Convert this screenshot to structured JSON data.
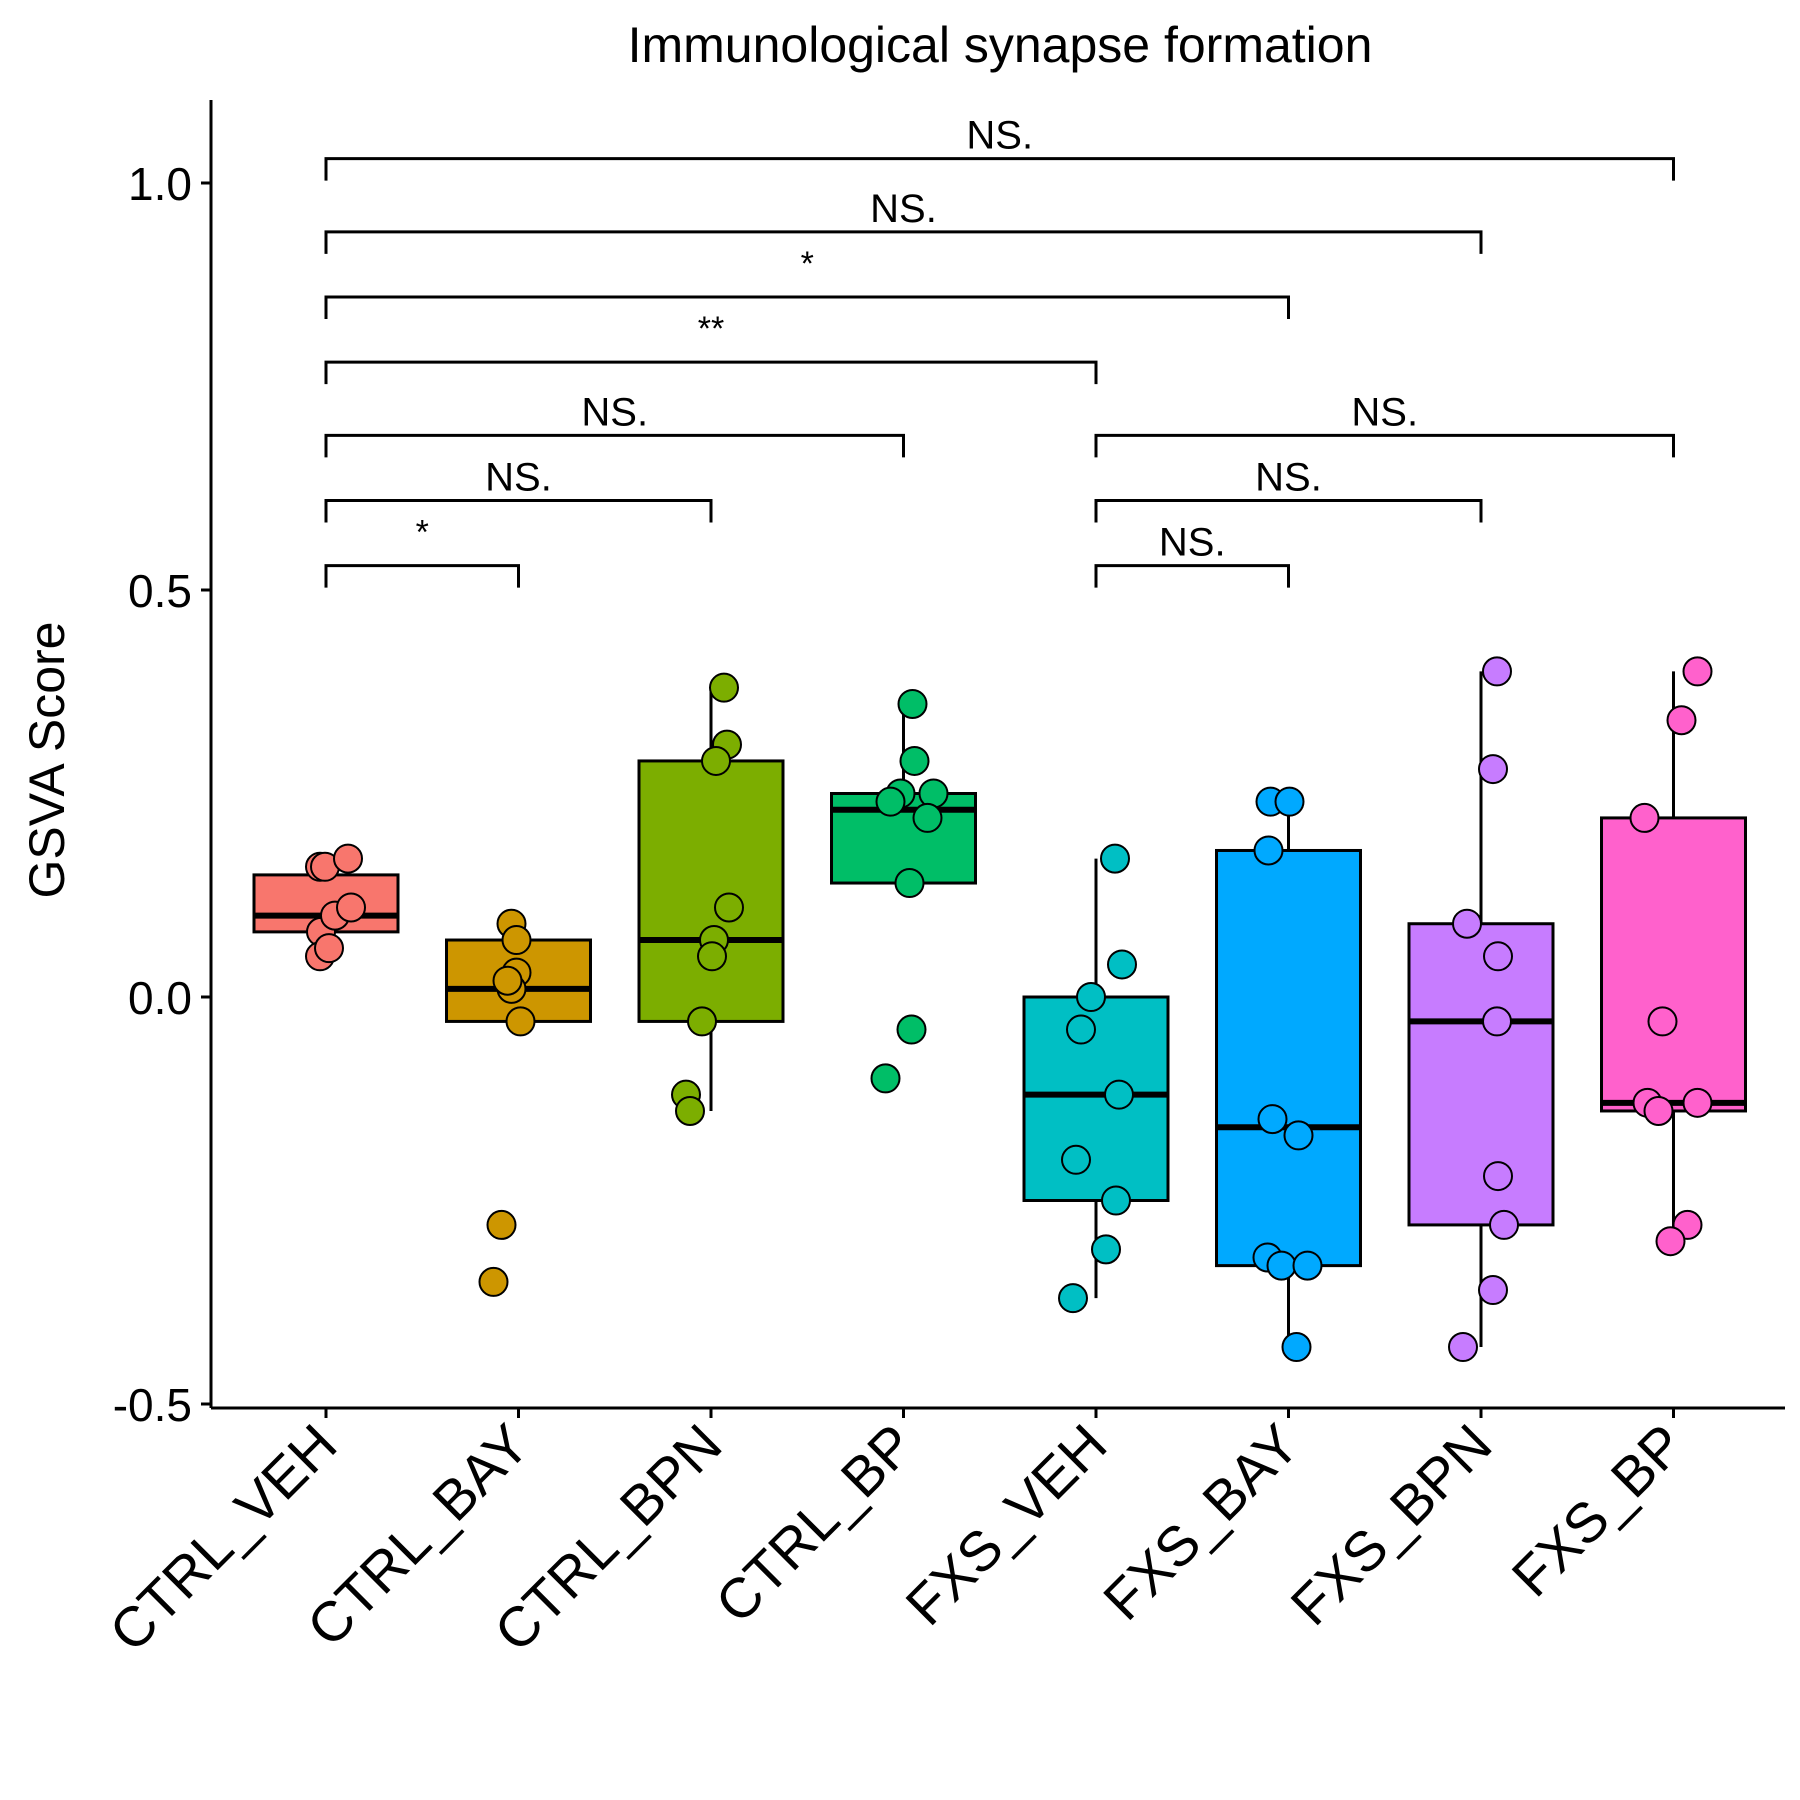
{
  "chart_data": {
    "type": "box",
    "title": "Immunological synapse formation",
    "xlabel": "",
    "ylabel": "GSVA Score",
    "ylim": [
      -0.5,
      1.1
    ],
    "yticks": [
      -0.5,
      0.0,
      0.5,
      1.0
    ],
    "ytick_labels": [
      "-0.5",
      "0.0",
      "0.5",
      "1.0"
    ],
    "grid": false,
    "legend": "none",
    "categories": [
      "CTRL_VEH",
      "CTRL_BAY",
      "CTRL_BPN",
      "CTRL_BP",
      "FXS_VEH",
      "FXS_BAY",
      "FXS_BPN",
      "FXS_BP"
    ],
    "colors": [
      "#F8766D",
      "#CD9600",
      "#7CAE00",
      "#00BE67",
      "#00BFC4",
      "#00A9FF",
      "#C77CFF",
      "#FF61CC"
    ],
    "boxes": [
      {
        "whisker_low": 0.08,
        "q1": 0.08,
        "median": 0.1,
        "q3": 0.15,
        "whisker_high": 0.17
      },
      {
        "whisker_low": -0.03,
        "q1": -0.03,
        "median": 0.01,
        "q3": 0.07,
        "whisker_high": 0.07
      },
      {
        "whisker_low": -0.14,
        "q1": -0.03,
        "median": 0.07,
        "q3": 0.29,
        "whisker_high": 0.38
      },
      {
        "whisker_low": 0.14,
        "q1": 0.14,
        "median": 0.23,
        "q3": 0.25,
        "whisker_high": 0.36
      },
      {
        "whisker_low": -0.37,
        "q1": -0.25,
        "median": -0.12,
        "q3": 0.0,
        "whisker_high": 0.17
      },
      {
        "whisker_low": -0.43,
        "q1": -0.33,
        "median": -0.16,
        "q3": 0.18,
        "whisker_high": 0.25
      },
      {
        "whisker_low": -0.43,
        "q1": -0.28,
        "median": -0.03,
        "q3": 0.09,
        "whisker_high": 0.4
      },
      {
        "whisker_low": -0.3,
        "q1": -0.14,
        "median": -0.13,
        "q3": 0.22,
        "whisker_high": 0.4
      }
    ],
    "points": [
      [
        [
          -0.06,
          0.16
        ],
        [
          -0.01,
          0.16
        ],
        [
          0.22,
          0.17
        ],
        [
          -0.05,
          0.08
        ],
        [
          0.09,
          0.1
        ],
        [
          0.25,
          0.11
        ],
        [
          -0.06,
          0.05
        ],
        [
          0.03,
          0.06
        ]
      ],
      [
        [
          -0.07,
          0.09
        ],
        [
          -0.02,
          0.07
        ],
        [
          -0.02,
          0.03
        ],
        [
          -0.07,
          0.01
        ],
        [
          -0.11,
          0.02
        ],
        [
          0.02,
          -0.03
        ],
        [
          -0.17,
          -0.28
        ],
        [
          -0.25,
          -0.35
        ]
      ],
      [
        [
          0.13,
          0.38
        ],
        [
          0.16,
          0.31
        ],
        [
          0.05,
          0.29
        ],
        [
          0.18,
          0.11
        ],
        [
          0.03,
          0.07
        ],
        [
          0.01,
          0.05
        ],
        [
          -0.09,
          -0.03
        ],
        [
          -0.25,
          -0.12
        ],
        [
          -0.21,
          -0.14
        ]
      ],
      [
        [
          0.09,
          0.36
        ],
        [
          0.11,
          0.29
        ],
        [
          0.3,
          0.25
        ],
        [
          -0.03,
          0.25
        ],
        [
          -0.13,
          0.24
        ],
        [
          0.24,
          0.22
        ],
        [
          0.06,
          0.14
        ],
        [
          0.08,
          -0.04
        ],
        [
          -0.18,
          -0.1
        ]
      ],
      [
        [
          0.19,
          0.17
        ],
        [
          0.26,
          0.04
        ],
        [
          -0.05,
          0.0
        ],
        [
          -0.15,
          -0.04
        ],
        [
          0.23,
          -0.12
        ],
        [
          -0.2,
          -0.2
        ],
        [
          0.2,
          -0.25
        ],
        [
          0.1,
          -0.31
        ],
        [
          -0.23,
          -0.37
        ]
      ],
      [
        [
          -0.18,
          0.24
        ],
        [
          0.01,
          0.24
        ],
        [
          -0.2,
          0.18
        ],
        [
          -0.16,
          -0.15
        ],
        [
          0.1,
          -0.17
        ],
        [
          -0.21,
          -0.32
        ],
        [
          -0.07,
          -0.33
        ],
        [
          0.19,
          -0.33
        ],
        [
          0.08,
          -0.43
        ]
      ],
      [
        [
          0.16,
          0.4
        ],
        [
          0.12,
          0.28
        ],
        [
          -0.14,
          0.09
        ],
        [
          0.17,
          0.05
        ],
        [
          0.16,
          -0.03
        ],
        [
          0.17,
          -0.22
        ],
        [
          0.23,
          -0.28
        ],
        [
          0.12,
          -0.36
        ],
        [
          -0.18,
          -0.43
        ]
      ],
      [
        [
          0.24,
          0.4
        ],
        [
          0.08,
          0.34
        ],
        [
          -0.29,
          0.22
        ],
        [
          -0.11,
          -0.03
        ],
        [
          -0.26,
          -0.13
        ],
        [
          0.24,
          -0.13
        ],
        [
          -0.15,
          -0.14
        ],
        [
          0.14,
          -0.28
        ],
        [
          -0.03,
          -0.3
        ]
      ]
    ],
    "significance": [
      {
        "from": 0,
        "to": 1,
        "label": "*"
      },
      {
        "from": 0,
        "to": 2,
        "label": "NS."
      },
      {
        "from": 0,
        "to": 3,
        "label": "NS."
      },
      {
        "from": 0,
        "to": 4,
        "label": "**"
      },
      {
        "from": 0,
        "to": 5,
        "label": "*"
      },
      {
        "from": 0,
        "to": 6,
        "label": "NS."
      },
      {
        "from": 0,
        "to": 7,
        "label": "NS."
      },
      {
        "from": 4,
        "to": 5,
        "label": "NS."
      },
      {
        "from": 4,
        "to": 6,
        "label": "NS."
      },
      {
        "from": 4,
        "to": 7,
        "label": "NS."
      }
    ]
  }
}
